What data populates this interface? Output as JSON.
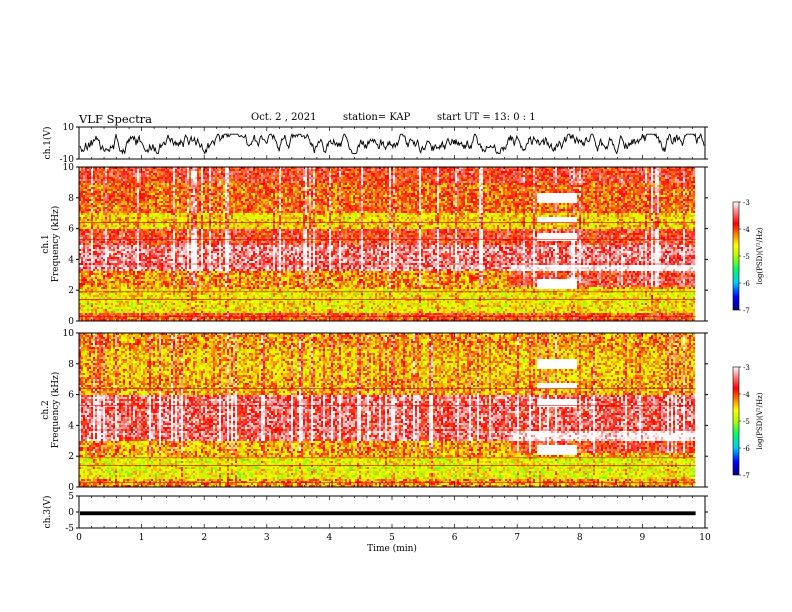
{
  "header": {
    "title": "VLF Spectra",
    "date": "Oct. 2 , 2021",
    "station": "station= KAP",
    "start": "start UT =  13: 0 : 1"
  },
  "chart_data": [
    {
      "type": "line",
      "panel": "ch1-waveform",
      "ylabel": "ch.1(V)",
      "ylim": [
        -10,
        10
      ],
      "y_ticks": [
        "10",
        "-10"
      ],
      "xlim": [
        0,
        10
      ],
      "x_unit": "min",
      "description_level": "noisy waveform oscillating roughly between -6 and +5 V",
      "color": "#000000"
    },
    {
      "type": "heatmap",
      "panel": "ch1-spectrogram",
      "ylabel": "ch.1",
      "ylabel2": "Frequency (kHz)",
      "ylim": [
        0,
        10
      ],
      "y_ticks": [
        "0",
        "2",
        "4",
        "6",
        "8",
        "10"
      ],
      "xlim": [
        0,
        10
      ],
      "colorbar": {
        "label": "log(PSD)(V²/Hz)",
        "min": -7,
        "max": -3,
        "ticks": [
          "-3",
          "-4",
          "-5",
          "-6",
          "-7"
        ]
      },
      "colormap": [
        "#000080",
        "#0000ff",
        "#00c8ff",
        "#00ff60",
        "#b4ff00",
        "#ffff00",
        "#ff8000",
        "#ff0000",
        "#ff9090",
        "#ffffff"
      ],
      "bands": [
        {
          "f0": 9.0,
          "f1": 10.0,
          "level": -3.9
        },
        {
          "f0": 7.0,
          "f1": 9.0,
          "level": -4.2
        },
        {
          "f0": 6.0,
          "f1": 7.0,
          "level": -4.7
        },
        {
          "f0": 5.0,
          "f1": 6.0,
          "level": -3.9
        },
        {
          "f0": 3.2,
          "f1": 5.0,
          "level": -3.5
        },
        {
          "f0": 2.1,
          "f1": 3.2,
          "level": -4.4
        },
        {
          "f0": 0.5,
          "f1": 2.1,
          "level": -4.8
        },
        {
          "f0": 0.0,
          "f1": 0.5,
          "level": -4.1
        }
      ],
      "event_interval_min": [
        7.3,
        7.95
      ]
    },
    {
      "type": "heatmap",
      "panel": "ch2-spectrogram",
      "ylabel": "ch.2",
      "ylabel2": "Frequency (kHz)",
      "ylim": [
        0,
        10
      ],
      "y_ticks": [
        "0",
        "2",
        "4",
        "6",
        "8",
        "10"
      ],
      "xlim": [
        0,
        10
      ],
      "colorbar": {
        "label": "log(PSD)(V²/Hz)",
        "min": -7,
        "max": -3,
        "ticks": [
          "-3",
          "-4",
          "-5",
          "-6",
          "-7"
        ]
      },
      "bands": [
        {
          "f0": 9.0,
          "f1": 10.0,
          "level": -4.4
        },
        {
          "f0": 7.0,
          "f1": 9.0,
          "level": -4.6
        },
        {
          "f0": 6.0,
          "f1": 7.0,
          "level": -4.5
        },
        {
          "f0": 3.0,
          "f1": 6.0,
          "level": -3.6
        },
        {
          "f0": 2.0,
          "f1": 3.0,
          "level": -4.5
        },
        {
          "f0": 0.5,
          "f1": 2.0,
          "level": -4.9
        },
        {
          "f0": 0.0,
          "f1": 0.5,
          "level": -4.4
        }
      ],
      "event_interval_min": [
        7.3,
        7.95
      ]
    },
    {
      "type": "line",
      "panel": "ch3-waveform",
      "ylabel": "ch.3(V)",
      "ylim": [
        -5,
        5
      ],
      "y_ticks": [
        "5",
        "0",
        "-5"
      ],
      "xlim": [
        0,
        9.85
      ],
      "level_band": [
        -1.0,
        0.2
      ],
      "color": "#000000"
    }
  ],
  "x_axis": {
    "label": "Time (min)",
    "ticks": [
      "0",
      "1",
      "2",
      "3",
      "4",
      "5",
      "6",
      "7",
      "8",
      "9",
      "10"
    ],
    "range": [
      0,
      10
    ]
  }
}
